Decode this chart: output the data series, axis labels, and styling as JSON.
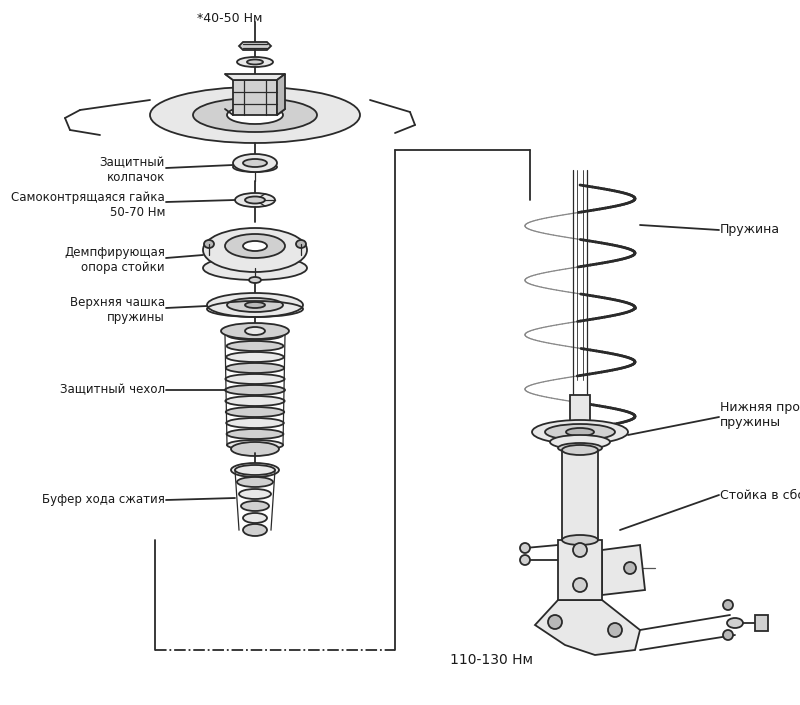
{
  "bg_color": "#ffffff",
  "lc": "#2a2a2a",
  "lc_thin": "#555555",
  "fc_light": "#e8e8e8",
  "fc_mid": "#d0d0d0",
  "fc_dark": "#b8b8b8",
  "label_color": "#1a1a1a",
  "title_top": "*40-50 Нм",
  "label_zk": "Защитный\nколпачок",
  "label_sg": "Самоконтрящаяся гайка\n50-70 Нм",
  "label_dos": "Демпфирующая\nопора стойки",
  "label_vch": "Верхняя чашка\nпружины",
  "label_zch": "Защитный чехол",
  "label_bhs": "Буфер хода сжатия",
  "label_pr": "Пружина",
  "label_np": "Нижняя проставка\nпружины",
  "label_sb": "Стойка в сборе",
  "label_bot": "110-130 Нм",
  "fig_width": 8.0,
  "fig_height": 7.05,
  "dpi": 100
}
